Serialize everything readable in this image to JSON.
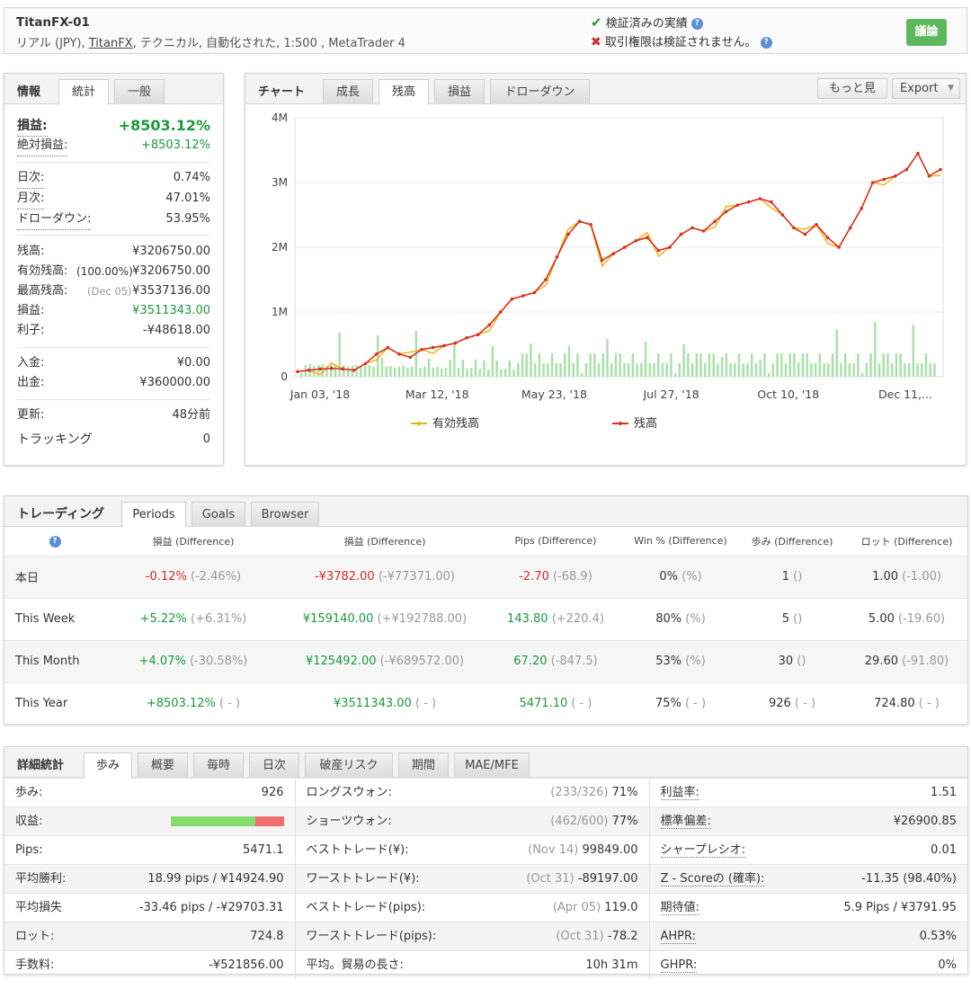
{
  "account": {
    "title": "TitanFX-01",
    "sub_prefix": "リアル (JPY), ",
    "sub_broker": "TitanFX",
    "sub_suffix": ", テクニカル, 自動化された, 1:500 , MetaTrader 4",
    "verified_track": "検証済みの実績",
    "unverified_access": "取引権限は検証されません。",
    "discuss_button": "議論"
  },
  "info": {
    "title": "情報",
    "tabs": [
      "統計",
      "一般"
    ],
    "gain_label": "損益:",
    "gain_value": "+8503.12%",
    "abs_gain_label": "絶対損益:",
    "abs_gain_value": "+8503.12%",
    "daily_label": "日次:",
    "daily_value": "0.74%",
    "monthly_label": "月次:",
    "monthly_value": "47.01%",
    "drawdown_label": "ドローダウン:",
    "drawdown_value": "53.95%",
    "balance_label": "残高:",
    "balance_value": "¥3206750.00",
    "equity_label": "有効残高:",
    "equity_pct": "(100.00%)",
    "equity_value": "¥3206750.00",
    "highest_label": "最高残高:",
    "highest_date": "(Dec 05)",
    "highest_value": "¥3537136.00",
    "profit_label": "損益:",
    "profit_value": "¥3511343.00",
    "interest_label": "利子:",
    "interest_value": "-¥48618.00",
    "deposits_label": "入金:",
    "deposits_value": "¥0.00",
    "withdrawals_label": "出金:",
    "withdrawals_value": "¥360000.00",
    "updated_label": "更新:",
    "updated_value": "48分前",
    "tracking_label": "トラッキング",
    "tracking_value": "0"
  },
  "chart": {
    "title": "チャート",
    "tabs": [
      "成長",
      "残高",
      "損益",
      "ドローダウン"
    ],
    "more_button": "もっと見",
    "export_button": "Export"
  },
  "chart_data": {
    "type": "line",
    "x_ticks": [
      "Jan 03, '18",
      "Mar 12, '18",
      "May 23, '18",
      "Jul 27, '18",
      "Oct 10, '18",
      "Dec 11,..."
    ],
    "y_ticks": [
      "0",
      "1M",
      "2M",
      "3M",
      "4M"
    ],
    "ylim": [
      0,
      4000000
    ],
    "series": [
      {
        "name": "有効残高",
        "color": "#f2b100"
      },
      {
        "name": "残高",
        "color": "#d9301f"
      }
    ],
    "balance": [
      80000,
      100000,
      120000,
      130000,
      120000,
      100000,
      200000,
      350000,
      450000,
      350000,
      300000,
      420000,
      450000,
      480000,
      520000,
      600000,
      650000,
      800000,
      1000000,
      1200000,
      1250000,
      1300000,
      1500000,
      1850000,
      2200000,
      2400000,
      2350000,
      1800000,
      1900000,
      2000000,
      2100000,
      2150000,
      1950000,
      2000000,
      2200000,
      2300000,
      2250000,
      2400000,
      2550000,
      2650000,
      2700000,
      2750000,
      2700000,
      2500000,
      2300000,
      2200000,
      2350000,
      2150000,
      2000000,
      2300000,
      2600000,
      3000000,
      3050000,
      3100000,
      3200000,
      3450000,
      3100000,
      3200000
    ],
    "volume_color": "#a8e0a8"
  },
  "trading": {
    "title": "トレーディング",
    "tabs": [
      "Periods",
      "Goals",
      "Browser"
    ],
    "headers": [
      "",
      "損益 (Difference)",
      "損益 (Difference)",
      "Pips (Difference)",
      "Win % (Difference)",
      "歩み (Difference)",
      "ロット (Difference)"
    ],
    "rows": [
      {
        "period": "本日",
        "gain": "-0.12%",
        "gain_diff": "(-2.46%)",
        "profit": "-¥3782.00",
        "profit_diff": "(-¥77371.00)",
        "pips": "-2.70",
        "pips_diff": "(-68.9)",
        "win": "0%",
        "win_diff": "(%)",
        "trades": "1",
        "trades_diff": "()",
        "lots": "1.00",
        "lots_diff": "(-1.00)",
        "neg": true
      },
      {
        "period": "This Week",
        "gain": "+5.22%",
        "gain_diff": "(+6.31%)",
        "profit": "¥159140.00",
        "profit_diff": "(+¥192788.00)",
        "pips": "143.80",
        "pips_diff": "(+220.4)",
        "win": "80%",
        "win_diff": "(%)",
        "trades": "5",
        "trades_diff": "()",
        "lots": "5.00",
        "lots_diff": "(-19.60)",
        "neg": false
      },
      {
        "period": "This Month",
        "gain": "+4.07%",
        "gain_diff": "(-30.58%)",
        "profit": "¥125492.00",
        "profit_diff": "(-¥689572.00)",
        "pips": "67.20",
        "pips_diff": "(-847.5)",
        "win": "53%",
        "win_diff": "(%)",
        "trades": "30",
        "trades_diff": "()",
        "lots": "29.60",
        "lots_diff": "(-91.80)",
        "neg": false
      },
      {
        "period": "This Year",
        "gain": "+8503.12%",
        "gain_diff": "( - )",
        "profit": "¥3511343.00",
        "profit_diff": "( - )",
        "pips": "5471.10",
        "pips_diff": "( - )",
        "win": "75%",
        "win_diff": "( - )",
        "trades": "926",
        "trades_diff": "( - )",
        "lots": "724.80",
        "lots_diff": "( - )",
        "neg": false
      }
    ]
  },
  "details": {
    "title": "詳細統計",
    "tabs": [
      "歩み",
      "概要",
      "毎時",
      "日次",
      "破産リスク",
      "期間",
      "MAE/MFE"
    ],
    "col1": [
      {
        "l": "歩み:",
        "v": "926"
      },
      {
        "l": "収益:",
        "v": "",
        "bar": true,
        "win_fraction": 0.75
      },
      {
        "l": "Pips:",
        "v": "5471.1"
      },
      {
        "l": "平均勝利:",
        "v": "18.99 pips / ¥14924.90"
      },
      {
        "l": "平均損失",
        "v": "-33.46 pips / -¥29703.31"
      },
      {
        "l": "ロット:",
        "v": "724.8"
      },
      {
        "l": "手数料:",
        "v": "-¥521856.00"
      }
    ],
    "col2": [
      {
        "l": "ロングスウォン:",
        "d": "(233/326)",
        "v": "71%"
      },
      {
        "l": "ショーツウォン:",
        "d": "(462/600)",
        "v": "77%"
      },
      {
        "l": "ベストトレード(¥):",
        "d": "(Nov 14)",
        "v": "99849.00"
      },
      {
        "l": "ワーストトレード(¥):",
        "d": "(Oct 31)",
        "v": "-89197.00"
      },
      {
        "l": "ベストトレード(pips):",
        "d": "(Apr 05)",
        "v": "119.0"
      },
      {
        "l": "ワーストトレード(pips):",
        "d": "(Oct 31)",
        "v": "-78.2"
      },
      {
        "l": "平均。貿易の長さ:",
        "d": "",
        "v": "10h 31m"
      }
    ],
    "col3": [
      {
        "l": "利益率:",
        "v": "1.51"
      },
      {
        "l": "標準偏差:",
        "v": "¥26900.85"
      },
      {
        "l": "シャープレシオ:",
        "v": "0.01"
      },
      {
        "l": "Z - Scoreの (確率):",
        "v": "-11.35 (98.40%)"
      },
      {
        "l": "期待値:",
        "v": "5.9 Pips / ¥3791.95"
      },
      {
        "l": "AHPR:",
        "v": "0.53%"
      },
      {
        "l": "GHPR:",
        "v": "0%"
      }
    ]
  }
}
